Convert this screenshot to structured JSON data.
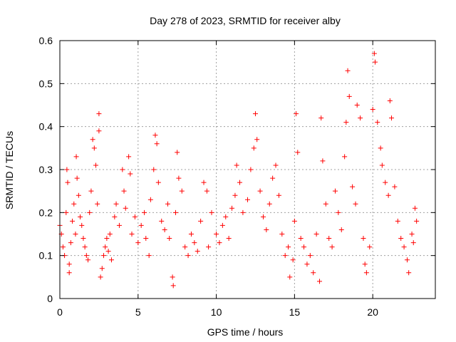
{
  "chart_data": {
    "type": "scatter",
    "title": "Day 278 of 2023, SRMTID for receiver alby",
    "xlabel": "GPS time / hours",
    "ylabel": "SRMTID / TECUs",
    "xlim": [
      0,
      24
    ],
    "ylim": [
      0,
      0.6
    ],
    "xticks": [
      0,
      5,
      10,
      15,
      20
    ],
    "xtick_labels": [
      "0",
      "5",
      "10",
      "15",
      "20"
    ],
    "yticks": [
      0,
      0.1,
      0.2,
      0.3,
      0.4,
      0.5,
      0.6
    ],
    "ytick_labels": [
      "0",
      "0.1",
      "0.2",
      "0.3",
      "0.4",
      "0.5",
      "0.6"
    ],
    "grid": true,
    "marker": "plus",
    "color": "#ff0000",
    "series": [
      {
        "name": "SRMTID",
        "points": [
          [
            0.0,
            0.17
          ],
          [
            0.1,
            0.15
          ],
          [
            0.2,
            0.12
          ],
          [
            0.3,
            0.1
          ],
          [
            0.4,
            0.2
          ],
          [
            0.45,
            0.3
          ],
          [
            0.5,
            0.27
          ],
          [
            0.6,
            0.08
          ],
          [
            0.6,
            0.06
          ],
          [
            0.7,
            0.13
          ],
          [
            0.8,
            0.18
          ],
          [
            0.9,
            0.22
          ],
          [
            1.0,
            0.15
          ],
          [
            1.05,
            0.33
          ],
          [
            1.1,
            0.28
          ],
          [
            1.2,
            0.24
          ],
          [
            1.3,
            0.19
          ],
          [
            1.4,
            0.17
          ],
          [
            1.5,
            0.14
          ],
          [
            1.6,
            0.12
          ],
          [
            1.7,
            0.1
          ],
          [
            1.8,
            0.09
          ],
          [
            1.9,
            0.2
          ],
          [
            2.0,
            0.25
          ],
          [
            2.1,
            0.37
          ],
          [
            2.2,
            0.35
          ],
          [
            2.3,
            0.31
          ],
          [
            2.4,
            0.22
          ],
          [
            2.5,
            0.39
          ],
          [
            2.5,
            0.43
          ],
          [
            2.6,
            0.05
          ],
          [
            2.7,
            0.07
          ],
          [
            2.8,
            0.1
          ],
          [
            2.9,
            0.12
          ],
          [
            3.0,
            0.14
          ],
          [
            3.1,
            0.11
          ],
          [
            3.2,
            0.15
          ],
          [
            3.3,
            0.09
          ],
          [
            3.5,
            0.19
          ],
          [
            3.6,
            0.22
          ],
          [
            3.8,
            0.17
          ],
          [
            4.0,
            0.3
          ],
          [
            4.1,
            0.25
          ],
          [
            4.2,
            0.21
          ],
          [
            4.4,
            0.33
          ],
          [
            4.5,
            0.29
          ],
          [
            4.6,
            0.15
          ],
          [
            4.8,
            0.19
          ],
          [
            5.0,
            0.13
          ],
          [
            5.2,
            0.17
          ],
          [
            5.4,
            0.2
          ],
          [
            5.5,
            0.14
          ],
          [
            5.7,
            0.1
          ],
          [
            5.8,
            0.23
          ],
          [
            6.0,
            0.3
          ],
          [
            6.1,
            0.38
          ],
          [
            6.2,
            0.36
          ],
          [
            6.3,
            0.27
          ],
          [
            6.5,
            0.18
          ],
          [
            6.7,
            0.16
          ],
          [
            6.9,
            0.22
          ],
          [
            7.0,
            0.14
          ],
          [
            7.2,
            0.05
          ],
          [
            7.25,
            0.03
          ],
          [
            7.4,
            0.2
          ],
          [
            7.5,
            0.34
          ],
          [
            7.6,
            0.28
          ],
          [
            7.8,
            0.25
          ],
          [
            8.0,
            0.12
          ],
          [
            8.2,
            0.1
          ],
          [
            8.4,
            0.15
          ],
          [
            8.6,
            0.13
          ],
          [
            8.8,
            0.11
          ],
          [
            9.0,
            0.18
          ],
          [
            9.2,
            0.27
          ],
          [
            9.4,
            0.25
          ],
          [
            9.5,
            0.12
          ],
          [
            9.7,
            0.2
          ],
          [
            10.0,
            0.15
          ],
          [
            10.2,
            0.13
          ],
          [
            10.4,
            0.17
          ],
          [
            10.6,
            0.19
          ],
          [
            10.8,
            0.14
          ],
          [
            11.0,
            0.21
          ],
          [
            11.2,
            0.24
          ],
          [
            11.3,
            0.31
          ],
          [
            11.5,
            0.27
          ],
          [
            11.7,
            0.2
          ],
          [
            12.0,
            0.23
          ],
          [
            12.2,
            0.3
          ],
          [
            12.4,
            0.35
          ],
          [
            12.5,
            0.43
          ],
          [
            12.6,
            0.37
          ],
          [
            12.8,
            0.25
          ],
          [
            13.0,
            0.19
          ],
          [
            13.2,
            0.16
          ],
          [
            13.4,
            0.22
          ],
          [
            13.6,
            0.28
          ],
          [
            13.8,
            0.31
          ],
          [
            14.0,
            0.24
          ],
          [
            14.2,
            0.15
          ],
          [
            14.4,
            0.1
          ],
          [
            14.6,
            0.12
          ],
          [
            14.7,
            0.05
          ],
          [
            14.9,
            0.09
          ],
          [
            15.0,
            0.18
          ],
          [
            15.1,
            0.43
          ],
          [
            15.2,
            0.34
          ],
          [
            15.4,
            0.14
          ],
          [
            15.6,
            0.12
          ],
          [
            15.8,
            0.08
          ],
          [
            16.0,
            0.1
          ],
          [
            16.2,
            0.06
          ],
          [
            16.4,
            0.15
          ],
          [
            16.6,
            0.04
          ],
          [
            16.7,
            0.42
          ],
          [
            16.8,
            0.32
          ],
          [
            17.0,
            0.22
          ],
          [
            17.2,
            0.14
          ],
          [
            17.4,
            0.12
          ],
          [
            17.6,
            0.25
          ],
          [
            17.8,
            0.2
          ],
          [
            18.0,
            0.16
          ],
          [
            18.2,
            0.33
          ],
          [
            18.3,
            0.41
          ],
          [
            18.4,
            0.53
          ],
          [
            18.5,
            0.47
          ],
          [
            18.7,
            0.26
          ],
          [
            18.9,
            0.22
          ],
          [
            19.0,
            0.45
          ],
          [
            19.2,
            0.42
          ],
          [
            19.4,
            0.14
          ],
          [
            19.5,
            0.08
          ],
          [
            19.6,
            0.06
          ],
          [
            19.8,
            0.12
          ],
          [
            20.0,
            0.44
          ],
          [
            20.1,
            0.57
          ],
          [
            20.15,
            0.55
          ],
          [
            20.3,
            0.41
          ],
          [
            20.5,
            0.35
          ],
          [
            20.6,
            0.31
          ],
          [
            20.8,
            0.27
          ],
          [
            21.0,
            0.24
          ],
          [
            21.1,
            0.46
          ],
          [
            21.2,
            0.42
          ],
          [
            21.4,
            0.26
          ],
          [
            21.6,
            0.18
          ],
          [
            21.8,
            0.14
          ],
          [
            22.0,
            0.12
          ],
          [
            22.2,
            0.09
          ],
          [
            22.3,
            0.06
          ],
          [
            22.5,
            0.15
          ],
          [
            22.6,
            0.13
          ],
          [
            22.7,
            0.21
          ],
          [
            22.8,
            0.18
          ]
        ]
      }
    ]
  }
}
